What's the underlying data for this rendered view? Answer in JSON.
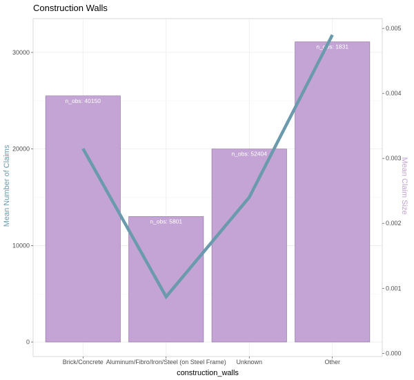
{
  "chart_data": {
    "type": "bar",
    "title": "Construction Walls",
    "xlabel": "construction_walls",
    "ylabel_left": "Mean Number of Claims",
    "ylabel_right": "Mean Claim Size",
    "categories": [
      "Brick/Concrete",
      "Aluminum/Fibro/Iron/Steel (on Steel Frame)",
      "Unknown",
      "Other"
    ],
    "series": [
      {
        "type": "bar",
        "axis": "left",
        "values": [
          25500,
          13000,
          20000,
          31100
        ]
      },
      {
        "type": "line",
        "axis": "right",
        "values": [
          0.00315,
          0.00087,
          0.0024,
          0.0049
        ]
      }
    ],
    "bar_labels": [
      "n_obs:  40150",
      "n_obs:  5801",
      "n_obs:  52404",
      "n_obs:  1831"
    ],
    "ylim_left": [
      -1500,
      33500
    ],
    "yticks_left": [
      0,
      10000,
      20000,
      30000
    ],
    "ylim_right": [
      -5e-05,
      0.00515
    ],
    "yticks_right": [
      0.0,
      0.001,
      0.002,
      0.003,
      0.004,
      0.005
    ],
    "grid": true,
    "colors": {
      "bar_fill": "#c3a4d4",
      "bar_stroke": "#7a5a8c",
      "line": "#6b9aad",
      "left_axis_title": "#6b9aad",
      "right_axis_title": "#c3a4d4",
      "grid": "#ebebeb"
    }
  }
}
